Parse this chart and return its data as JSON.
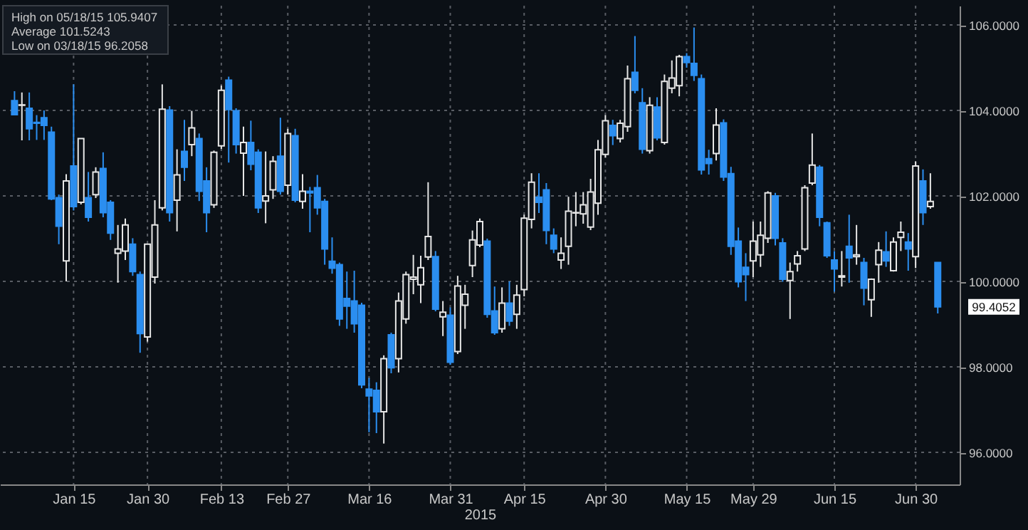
{
  "chart_data": {
    "type": "candlestick",
    "xlabel": "2015",
    "categories": [
      null,
      null,
      null,
      null,
      null,
      null,
      null,
      null,
      "Jan 15",
      null,
      null,
      null,
      null,
      null,
      null,
      null,
      null,
      null,
      "Jan 30",
      null,
      null,
      null,
      null,
      null,
      null,
      null,
      null,
      null,
      "Feb 13",
      null,
      null,
      null,
      null,
      null,
      null,
      null,
      null,
      "Feb 27",
      null,
      null,
      null,
      null,
      null,
      null,
      null,
      null,
      null,
      null,
      "Mar 16",
      null,
      null,
      null,
      null,
      null,
      null,
      null,
      null,
      null,
      null,
      "Mar 31",
      null,
      null,
      null,
      null,
      null,
      null,
      null,
      null,
      null,
      "Apr 15",
      null,
      null,
      null,
      null,
      null,
      null,
      null,
      null,
      null,
      null,
      "Apr 30",
      null,
      null,
      null,
      null,
      null,
      null,
      null,
      null,
      null,
      null,
      "May 15",
      null,
      null,
      null,
      null,
      null,
      null,
      null,
      null,
      "May 29",
      null,
      null,
      null,
      null,
      null,
      null,
      null,
      null,
      null,
      null,
      "Jun 15",
      null,
      null,
      null,
      null,
      null,
      null,
      null,
      null,
      null,
      null,
      "Jun 30",
      null,
      null,
      null
    ],
    "ohlc": [
      [
        104.23,
        104.45,
        103.9,
        103.9
      ],
      [
        104.12,
        104.42,
        103.3,
        104.13
      ],
      [
        104.05,
        104.42,
        103.3,
        103.57
      ],
      [
        103.72,
        103.89,
        103.31,
        103.7
      ],
      [
        103.83,
        104.0,
        103.31,
        103.65
      ],
      [
        103.49,
        103.62,
        101.9,
        101.93
      ],
      [
        101.96,
        102.03,
        100.87,
        101.29
      ],
      [
        100.48,
        102.51,
        100.0,
        102.35
      ],
      [
        102.7,
        104.61,
        101.66,
        101.75
      ],
      [
        101.85,
        103.34,
        101.8,
        103.34
      ],
      [
        101.96,
        102.56,
        101.4,
        101.5
      ],
      [
        102.03,
        102.67,
        101.95,
        102.56
      ],
      [
        102.64,
        103.02,
        101.5,
        101.61
      ],
      [
        101.85,
        101.9,
        100.97,
        101.13
      ],
      [
        100.66,
        101.32,
        99.97,
        100.76
      ],
      [
        100.71,
        101.47,
        100.5,
        101.32
      ],
      [
        100.87,
        101.01,
        100.13,
        100.23
      ],
      [
        100.16,
        100.23,
        98.33,
        98.78
      ],
      [
        98.7,
        100.87,
        98.59,
        100.87
      ],
      [
        100.1,
        101.9,
        99.95,
        101.32
      ],
      [
        101.72,
        104.61,
        101.66,
        104.03
      ],
      [
        104.01,
        104.1,
        101.4,
        101.61
      ],
      [
        101.9,
        103.09,
        101.17,
        102.49
      ],
      [
        103.04,
        103.78,
        102.35,
        102.67
      ],
      [
        103.2,
        103.99,
        102.93,
        103.59
      ],
      [
        103.34,
        103.46,
        101.88,
        102.11
      ],
      [
        102.35,
        102.67,
        101.15,
        101.61
      ],
      [
        101.79,
        103.06,
        101.72,
        103.02
      ],
      [
        103.17,
        104.58,
        103.1,
        104.47
      ],
      [
        104.71,
        104.79,
        102.78,
        104.02
      ],
      [
        103.99,
        104.05,
        102.99,
        103.2
      ],
      [
        103.0,
        103.62,
        102.0,
        103.25
      ],
      [
        103.25,
        103.76,
        102.6,
        102.74
      ],
      [
        103.02,
        103.09,
        101.6,
        101.72
      ],
      [
        101.88,
        103.04,
        101.36,
        102.0
      ],
      [
        102.14,
        102.93,
        101.93,
        102.81
      ],
      [
        102.93,
        103.83,
        102.03,
        102.11
      ],
      [
        102.25,
        103.57,
        102.03,
        103.46
      ],
      [
        103.41,
        103.57,
        101.85,
        101.9
      ],
      [
        101.87,
        102.51,
        101.7,
        102.11
      ],
      [
        102.11,
        102.21,
        101.15,
        102.07
      ],
      [
        102.19,
        102.49,
        101.56,
        101.72
      ],
      [
        101.87,
        101.93,
        100.39,
        100.76
      ],
      [
        100.47,
        101.03,
        100.18,
        100.31
      ],
      [
        100.39,
        100.44,
        98.96,
        99.12
      ],
      [
        99.6,
        100.23,
        98.89,
        99.42
      ],
      [
        99.54,
        100.25,
        98.8,
        99.01
      ],
      [
        99.44,
        99.5,
        97.5,
        97.58
      ],
      [
        97.48,
        97.74,
        96.47,
        97.32
      ],
      [
        97.45,
        97.64,
        96.45,
        96.95
      ],
      [
        96.95,
        98.27,
        96.2058,
        98.19
      ],
      [
        98.75,
        98.8,
        97.85,
        97.98
      ],
      [
        98.19,
        99.74,
        97.87,
        99.54
      ],
      [
        99.12,
        100.23,
        99.01,
        100.16
      ],
      [
        100.05,
        100.62,
        99.7,
        100.1
      ],
      [
        99.92,
        100.6,
        99.49,
        100.32
      ],
      [
        100.57,
        102.32,
        100.5,
        101.05
      ],
      [
        100.58,
        100.71,
        99.3,
        99.35
      ],
      [
        99.17,
        99.54,
        98.72,
        99.28
      ],
      [
        99.21,
        99.39,
        98.05,
        98.11
      ],
      [
        98.36,
        100.13,
        98.3,
        99.89
      ],
      [
        99.44,
        99.92,
        98.89,
        99.7
      ],
      [
        100.37,
        101.19,
        100.1,
        100.97
      ],
      [
        100.85,
        101.47,
        100.8,
        101.4
      ],
      [
        100.94,
        101.0,
        99.15,
        99.23
      ],
      [
        99.31,
        99.88,
        98.75,
        98.8
      ],
      [
        98.89,
        99.86,
        98.8,
        99.49
      ],
      [
        99.49,
        100.0,
        98.96,
        99.07
      ],
      [
        99.23,
        99.92,
        98.89,
        99.68
      ],
      [
        99.81,
        101.56,
        99.65,
        101.48
      ],
      [
        101.45,
        102.53,
        101.24,
        102.32
      ],
      [
        101.97,
        102.53,
        101.6,
        101.85
      ],
      [
        102.14,
        102.3,
        100.87,
        101.19
      ],
      [
        101.08,
        101.24,
        100.66,
        100.76
      ],
      [
        100.5,
        101.03,
        100.29,
        100.66
      ],
      [
        100.82,
        101.98,
        100.39,
        101.64
      ],
      [
        101.6,
        102.09,
        101.29,
        101.61
      ],
      [
        101.58,
        102.09,
        101.35,
        101.79
      ],
      [
        101.27,
        102.4,
        101.2,
        102.09
      ],
      [
        101.83,
        103.31,
        101.56,
        103.08
      ],
      [
        102.97,
        103.89,
        102.9,
        103.76
      ],
      [
        103.65,
        103.78,
        103.19,
        103.41
      ],
      [
        103.34,
        103.78,
        103.25,
        103.7
      ],
      [
        103.62,
        105.05,
        103.5,
        104.74
      ],
      [
        104.89,
        105.74,
        104.4,
        104.47
      ],
      [
        104.18,
        104.52,
        102.99,
        103.09
      ],
      [
        103.06,
        104.31,
        102.99,
        104.12
      ],
      [
        104.08,
        104.31,
        103.3,
        103.36
      ],
      [
        103.25,
        104.84,
        103.2,
        104.68
      ],
      [
        104.52,
        105.17,
        104.4,
        104.76
      ],
      [
        104.58,
        105.3,
        104.33,
        105.26
      ],
      [
        105.26,
        105.34,
        105.0,
        105.12
      ],
      [
        105.1,
        105.9407,
        104.69,
        104.82
      ],
      [
        104.74,
        104.84,
        102.5,
        102.61
      ],
      [
        102.87,
        103.08,
        102.5,
        102.76
      ],
      [
        102.99,
        104.05,
        102.83,
        103.66
      ],
      [
        103.71,
        103.79,
        102.35,
        102.44
      ],
      [
        102.52,
        102.68,
        100.62,
        100.82
      ],
      [
        100.94,
        101.26,
        99.86,
        99.99
      ],
      [
        100.33,
        100.66,
        99.54,
        100.16
      ],
      [
        100.48,
        101.4,
        100.1,
        100.94
      ],
      [
        100.62,
        101.4,
        100.34,
        101.08
      ],
      [
        101.01,
        102.11,
        100.9,
        102.07
      ],
      [
        102.0,
        102.07,
        100.84,
        101.01
      ],
      [
        100.9,
        101.01,
        99.99,
        100.05
      ],
      [
        100.02,
        100.44,
        99.12,
        100.23
      ],
      [
        100.41,
        100.71,
        100.23,
        100.6
      ],
      [
        100.76,
        102.25,
        100.71,
        102.19
      ],
      [
        102.3,
        103.46,
        102.25,
        102.72
      ],
      [
        102.67,
        102.72,
        101.29,
        101.5
      ],
      [
        101.37,
        101.4,
        100.55,
        100.6
      ],
      [
        100.5,
        100.71,
        99.76,
        100.29
      ],
      [
        100.1,
        100.71,
        99.88,
        100.13
      ],
      [
        100.82,
        101.56,
        99.97,
        100.55
      ],
      [
        100.58,
        101.32,
        100.39,
        100.62
      ],
      [
        100.44,
        100.55,
        99.44,
        99.84
      ],
      [
        99.57,
        100.07,
        99.17,
        100.05
      ],
      [
        100.39,
        100.92,
        99.97,
        100.73
      ],
      [
        100.69,
        101.17,
        100.34,
        100.48
      ],
      [
        100.25,
        101.03,
        100.23,
        100.92
      ],
      [
        101.03,
        101.4,
        100.71,
        101.15
      ],
      [
        100.92,
        101.13,
        100.25,
        100.76
      ],
      [
        100.58,
        102.81,
        100.31,
        102.7
      ],
      [
        102.35,
        102.62,
        101.32,
        101.61
      ],
      [
        101.75,
        102.53,
        101.7,
        101.87
      ],
      [
        100.44,
        100.44,
        99.25,
        99.4052
      ]
    ],
    "colors": [
      "#2b8ef0",
      "#e6e6e6",
      "#2b8ef0",
      "#2b8ef0",
      "#2b8ef0",
      "#2b8ef0",
      "#2b8ef0",
      "#e6e6e6",
      "#2b8ef0",
      "#e6e6e6",
      "#2b8ef0",
      "#e6e6e6",
      "#2b8ef0",
      "#2b8ef0",
      "#e6e6e6",
      "#e6e6e6",
      "#2b8ef0",
      "#2b8ef0",
      "#e6e6e6",
      "#e6e6e6",
      "#e6e6e6",
      "#2b8ef0",
      "#e6e6e6",
      "#2b8ef0",
      "#e6e6e6",
      "#2b8ef0",
      "#2b8ef0",
      "#e6e6e6",
      "#e6e6e6",
      "#2b8ef0",
      "#2b8ef0",
      "#e6e6e6",
      "#2b8ef0",
      "#2b8ef0",
      "#e6e6e6",
      "#e6e6e6",
      "#2b8ef0",
      "#e6e6e6",
      "#2b8ef0",
      "#e6e6e6",
      "#2b8ef0",
      "#2b8ef0",
      "#2b8ef0",
      "#2b8ef0",
      "#2b8ef0",
      "#2b8ef0",
      "#2b8ef0",
      "#2b8ef0",
      "#2b8ef0",
      "#2b8ef0",
      "#e6e6e6",
      "#2b8ef0",
      "#e6e6e6",
      "#e6e6e6",
      "#e6e6e6",
      "#e6e6e6",
      "#e6e6e6",
      "#2b8ef0",
      "#e6e6e6",
      "#2b8ef0",
      "#e6e6e6",
      "#e6e6e6",
      "#e6e6e6",
      "#e6e6e6",
      "#2b8ef0",
      "#2b8ef0",
      "#e6e6e6",
      "#2b8ef0",
      "#e6e6e6",
      "#e6e6e6",
      "#e6e6e6",
      "#2b8ef0",
      "#2b8ef0",
      "#2b8ef0",
      "#e6e6e6",
      "#e6e6e6",
      "#e6e6e6",
      "#e6e6e6",
      "#e6e6e6",
      "#e6e6e6",
      "#e6e6e6",
      "#2b8ef0",
      "#e6e6e6",
      "#e6e6e6",
      "#2b8ef0",
      "#2b8ef0",
      "#e6e6e6",
      "#2b8ef0",
      "#e6e6e6",
      "#e6e6e6",
      "#e6e6e6",
      "#2b8ef0",
      "#2b8ef0",
      "#2b8ef0",
      "#2b8ef0",
      "#e6e6e6",
      "#2b8ef0",
      "#2b8ef0",
      "#2b8ef0",
      "#2b8ef0",
      "#e6e6e6",
      "#e6e6e6",
      "#e6e6e6",
      "#2b8ef0",
      "#2b8ef0",
      "#e6e6e6",
      "#e6e6e6",
      "#e6e6e6",
      "#e6e6e6",
      "#2b8ef0",
      "#2b8ef0",
      "#2b8ef0",
      "#e6e6e6",
      "#2b8ef0",
      "#e6e6e6",
      "#2b8ef0",
      "#e6e6e6",
      "#e6e6e6",
      "#2b8ef0",
      "#e6e6e6",
      "#e6e6e6",
      "#2b8ef0",
      "#e6e6e6",
      "#2b8ef0",
      "#e6e6e6",
      "#2b8ef0"
    ],
    "ylim": [
      95.25,
      106.45
    ],
    "yticks": [
      {
        "value": 96,
        "label": "96.0000"
      },
      {
        "value": 98,
        "label": "98.0000"
      },
      {
        "value": 100,
        "label": "100.0000"
      },
      {
        "value": 102,
        "label": "102.0000"
      },
      {
        "value": 104,
        "label": "104.0000"
      },
      {
        "value": 106,
        "label": "106.0000"
      }
    ],
    "grid": true,
    "annotations": [
      "High on 05/18/15 105.9407",
      "Average 101.5243",
      "Low on 03/18/15 96.2058",
      "99.4052"
    ]
  }
}
